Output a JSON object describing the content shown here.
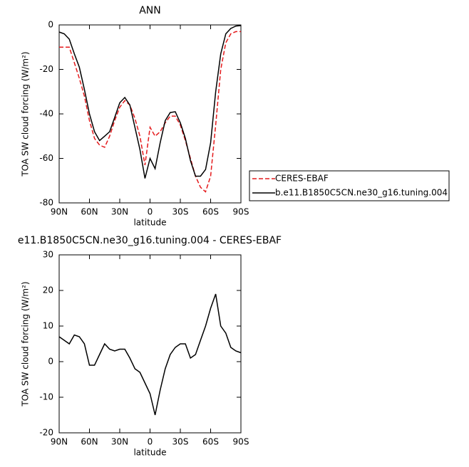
{
  "chart_data": [
    {
      "type": "line",
      "title": "ANN",
      "x_label": "latitude",
      "y_label": "TOA SW cloud forcing (W/m²)",
      "x": [
        90,
        85,
        80,
        75,
        70,
        65,
        60,
        55,
        50,
        45,
        40,
        35,
        30,
        25,
        20,
        15,
        10,
        5,
        0,
        -5,
        -10,
        -15,
        -20,
        -25,
        -30,
        -35,
        -40,
        -45,
        -50,
        -55,
        -60,
        -65,
        -70,
        -75,
        -80,
        -85,
        -90
      ],
      "xlim": [
        90,
        -90
      ],
      "xticks": [
        {
          "value": 90,
          "label": "90N"
        },
        {
          "value": 60,
          "label": "60N"
        },
        {
          "value": 30,
          "label": "30N"
        },
        0,
        {
          "value": -30,
          "label": "30S"
        },
        {
          "value": -60,
          "label": "60S"
        },
        {
          "value": -90,
          "label": "90S"
        }
      ],
      "ylim": [
        -80,
        0
      ],
      "yticks": [
        0,
        -20,
        -40,
        -60,
        -80
      ],
      "legend": "outside-right",
      "series": [
        {
          "name": "CERES-EBAF",
          "color": "#e41a1c",
          "dashed": true,
          "values": [
            -10,
            -10,
            -10,
            -17,
            -24,
            -32,
            -43,
            -51,
            -54,
            -55,
            -50,
            -43,
            -37,
            -34,
            -36,
            -42,
            -50,
            -63,
            -46,
            -50,
            -48,
            -44,
            -41,
            -41,
            -45,
            -52,
            -60,
            -68,
            -73,
            -75,
            -68,
            -45,
            -20,
            -8,
            -4,
            -3,
            -3
          ]
        },
        {
          "name": "b.e11.B1850C5CN.ne30_g16.tuning.004",
          "color": "#000000",
          "dashed": false,
          "values": [
            -3.2,
            -4,
            -6.4,
            -13,
            -19,
            -29,
            -40,
            -48,
            -52,
            -50,
            -48,
            -41.6,
            -35,
            -32.6,
            -36,
            -46,
            -56,
            -69,
            -60,
            -64.6,
            -53,
            -43,
            -39.4,
            -39,
            -44,
            -51,
            -61,
            -68,
            -68,
            -65,
            -53,
            -30,
            -13,
            -4,
            -1.6,
            -0.5,
            -0.3
          ]
        }
      ]
    },
    {
      "type": "line",
      "title": "e11.B1850C5CN.ne30_g16.tuning.004 - CERES-EBAF",
      "x_label": "latitude",
      "y_label": "TOA SW cloud forcing (W/m²)",
      "x": [
        90,
        85,
        80,
        75,
        70,
        65,
        60,
        55,
        50,
        45,
        40,
        35,
        30,
        25,
        20,
        15,
        10,
        5,
        0,
        -5,
        -10,
        -15,
        -20,
        -25,
        -30,
        -35,
        -40,
        -45,
        -50,
        -55,
        -60,
        -65,
        -70,
        -75,
        -80,
        -85,
        -90
      ],
      "xlim": [
        90,
        -90
      ],
      "xticks": [
        {
          "value": 90,
          "label": "90N"
        },
        {
          "value": 60,
          "label": "60N"
        },
        {
          "value": 30,
          "label": "30N"
        },
        0,
        {
          "value": -30,
          "label": "30S"
        },
        {
          "value": -60,
          "label": "60S"
        },
        {
          "value": -90,
          "label": "90S"
        }
      ],
      "ylim": [
        -20,
        30
      ],
      "yticks": [
        30,
        20,
        10,
        0,
        -10,
        -20
      ],
      "color": "#000000",
      "values": [
        7,
        6,
        5,
        7.5,
        7,
        5,
        -1,
        -1,
        2,
        5,
        3.5,
        3,
        3.5,
        3.5,
        1,
        -2,
        -3,
        -6,
        -9,
        -15,
        -8,
        -2,
        2,
        4,
        5,
        5,
        1,
        2,
        6,
        10,
        15,
        19,
        10,
        8,
        4,
        3,
        2.5
      ]
    }
  ]
}
